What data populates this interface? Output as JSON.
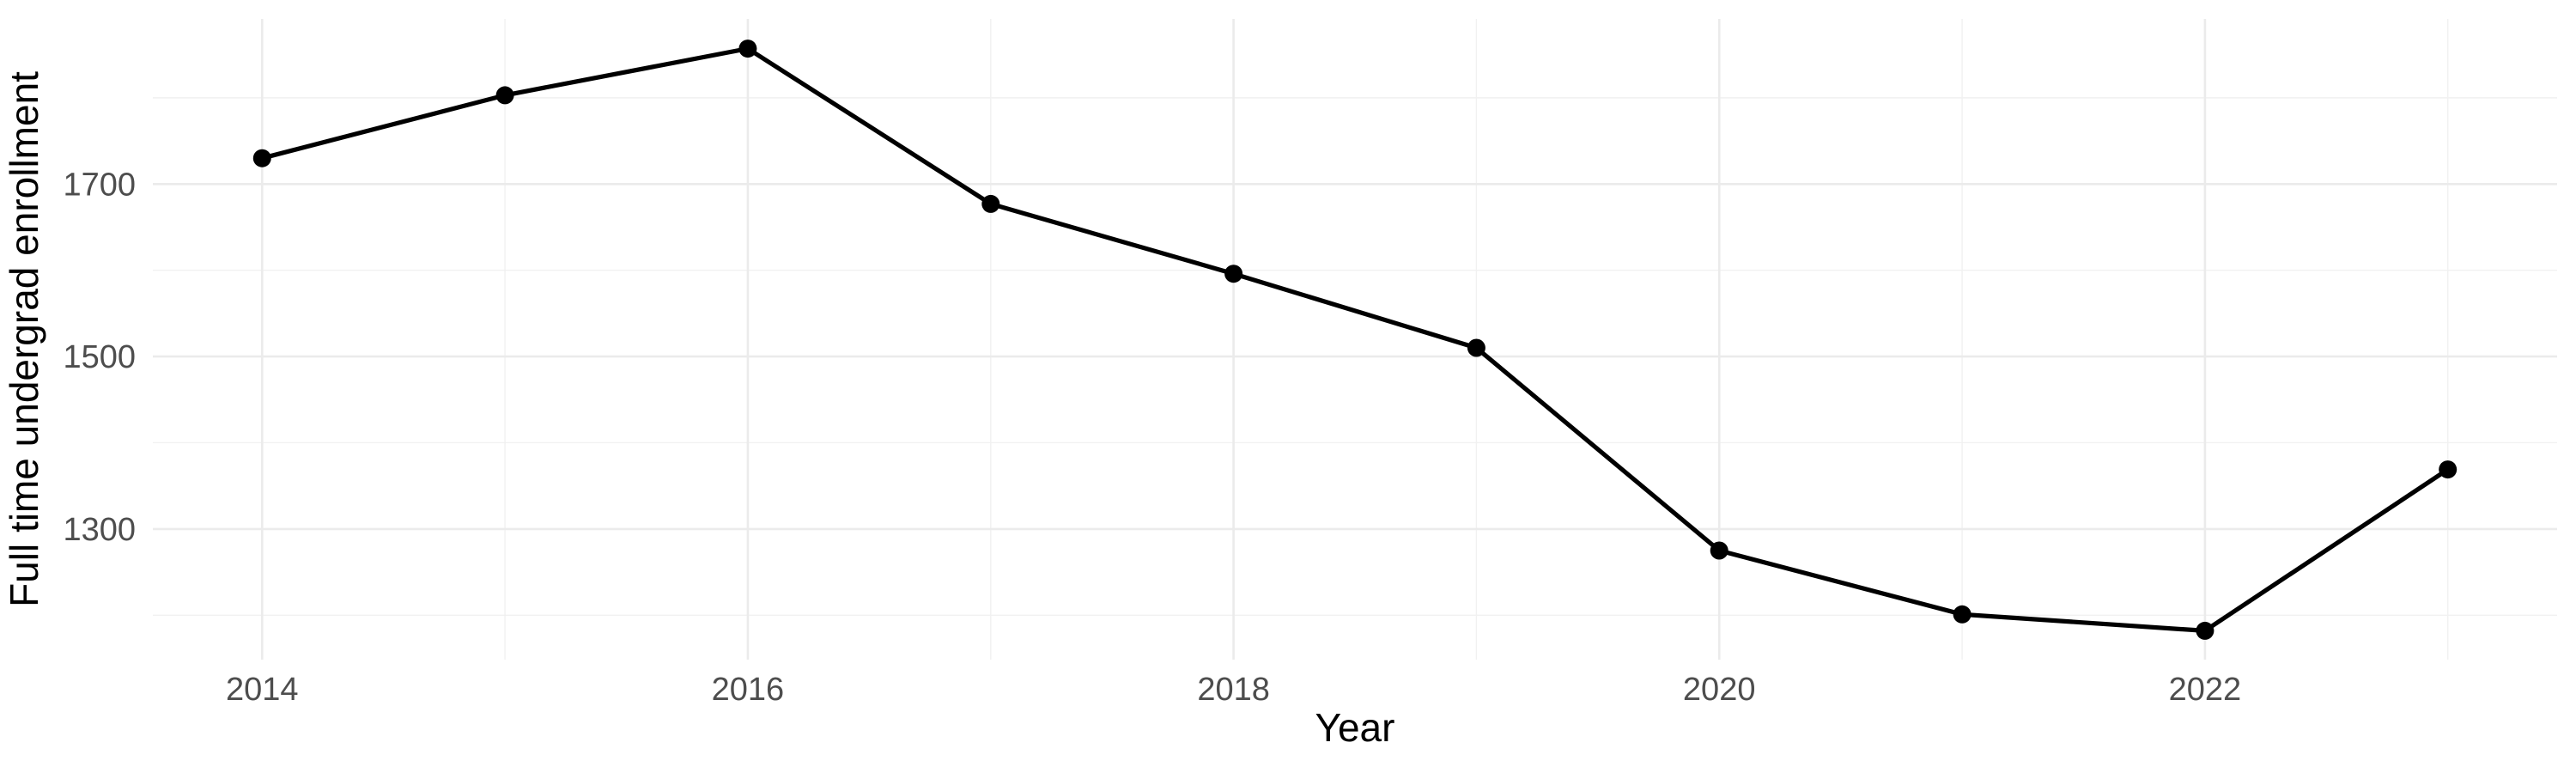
{
  "chart_data": {
    "type": "line",
    "x": [
      2014,
      2015,
      2016,
      2017,
      2018,
      2019,
      2020,
      2021,
      2022,
      2023
    ],
    "values": [
      1730,
      1803,
      1857,
      1677,
      1596,
      1510,
      1275,
      1201,
      1182,
      1369
    ],
    "title": "",
    "xlabel": "Year",
    "ylabel": "Full time undergrad enrollment",
    "x_major_ticks": [
      2014,
      2016,
      2018,
      2020,
      2022
    ],
    "x_minor_ticks": [
      2015,
      2017,
      2019,
      2021,
      2023
    ],
    "y_major_ticks": [
      1300,
      1500,
      1700
    ],
    "y_minor_ticks": [
      1200,
      1400,
      1600,
      1800
    ],
    "xlim": [
      2013.55,
      2023.45
    ],
    "ylim": [
      1148.5,
      1891.5
    ],
    "grid": true,
    "legend": "none",
    "marker": "point",
    "colors": {
      "line": "#000000",
      "point": "#000000",
      "grid_major": "#EBEBEB",
      "grid_minor": "#F1F1F1",
      "tick_label": "#4D4D4D",
      "axis_title": "#000000",
      "background": "#FFFFFF"
    }
  }
}
